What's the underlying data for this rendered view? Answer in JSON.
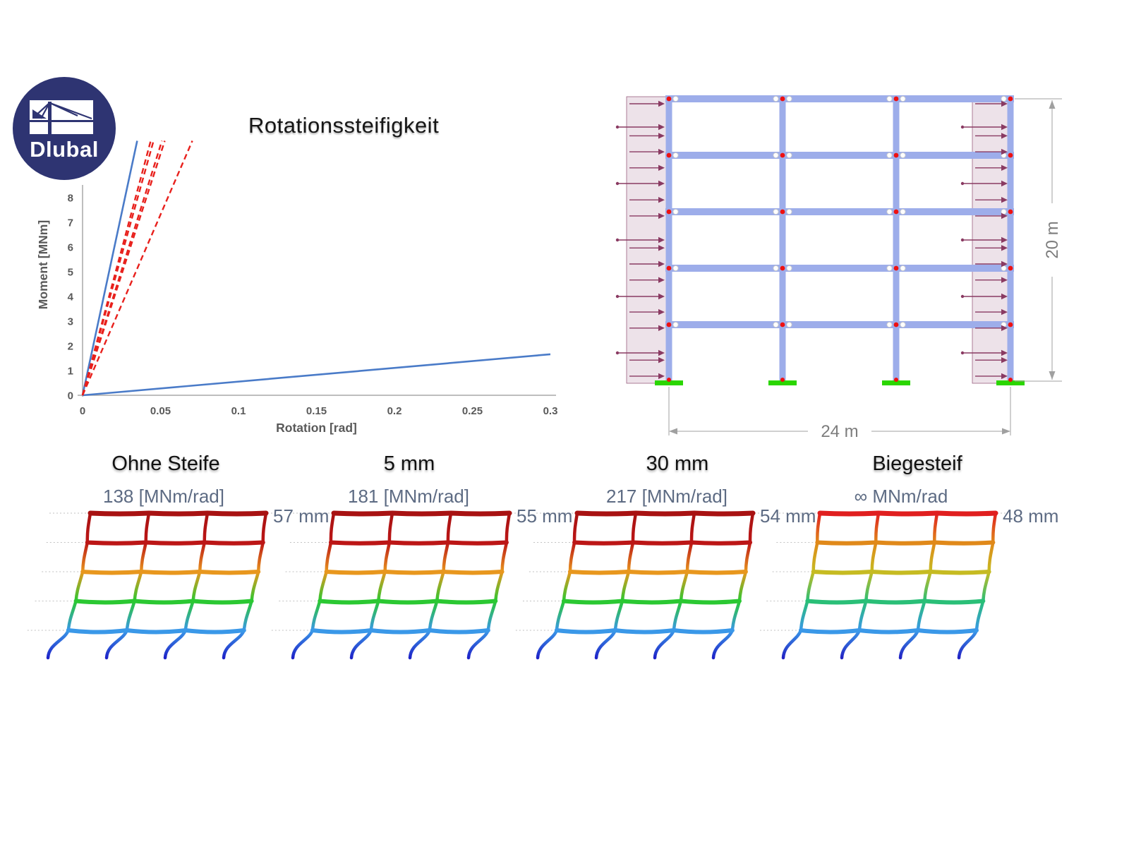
{
  "logo": {
    "brand": "Dlubal",
    "circle_color": "#2e3472",
    "mark_color": "#2e3472"
  },
  "chart": {
    "title": "Rotationssteifigkeit"
  },
  "chart_data": {
    "type": "line",
    "title": "Rotationssteifigkeit",
    "xlabel": "Rotation [rad]",
    "ylabel": "Moment [MNm]",
    "xlim": [
      0,
      0.3
    ],
    "ylim": [
      0,
      8
    ],
    "grid": false,
    "legend": "none",
    "xticks": [
      "0",
      "0.05",
      "0.1",
      "0.15",
      "0.2",
      "0.25",
      "0.3"
    ],
    "xtick_values": [
      0,
      0.05,
      0.1,
      0.15,
      0.2,
      0.25,
      0.3
    ],
    "yticks": [
      0,
      1,
      2,
      3,
      4,
      5,
      6,
      7,
      8
    ],
    "series": [
      {
        "name": "starre Anbindung (blau steil)",
        "style": "solid",
        "color": "#4a7bc8",
        "width": 2.6,
        "points": [
          [
            0,
            0
          ],
          [
            0.035,
            10.3
          ]
        ]
      },
      {
        "name": "gelenkige Anbindung (blau flach)",
        "style": "solid",
        "color": "#4a7bc8",
        "width": 2.6,
        "points": [
          [
            0,
            0
          ],
          [
            0.3,
            1.66
          ]
        ]
      },
      {
        "name": "Rotationssteifigkeit rot 1",
        "style": "dashed",
        "color": "#e8201c",
        "width": 2.4,
        "points": [
          [
            0,
            0
          ],
          [
            0.0437,
            10.3
          ]
        ]
      },
      {
        "name": "Rotationssteifigkeit rot 2",
        "style": "dashed",
        "color": "#e8201c",
        "width": 2.4,
        "points": [
          [
            0,
            0
          ],
          [
            0.0455,
            10.3
          ]
        ]
      },
      {
        "name": "Rotationssteifigkeit rot 3",
        "style": "dashed",
        "color": "#e8201c",
        "width": 2.4,
        "points": [
          [
            0,
            0
          ],
          [
            0.0509,
            10.3
          ]
        ]
      },
      {
        "name": "Rotationssteifigkeit rot 4",
        "style": "dashed",
        "color": "#e8201c",
        "width": 2.4,
        "points": [
          [
            0,
            0
          ],
          [
            0.0527,
            10.3
          ]
        ]
      },
      {
        "name": "Rotationssteifigkeit rot 5",
        "style": "dashed",
        "color": "#e8201c",
        "width": 2.4,
        "points": [
          [
            0,
            0
          ],
          [
            0.0704,
            10.3
          ]
        ]
      }
    ]
  },
  "frame_diagram": {
    "width_label": "24 m",
    "height_label": "20 m",
    "bays": 3,
    "stories": 5,
    "member_color": "#9dadea",
    "joint_color": "#ee1111",
    "hinge_color": "#ffffff",
    "load_color": "#8a3a62",
    "load_band_fill": "#c9a8bd",
    "support_color": "#2bd600",
    "dim_color": "#a0a0a0"
  },
  "cases": [
    {
      "title": "Ohne Steife",
      "stiffness": "138 [MNm/rad]",
      "displacement": "57 mm",
      "stub_color": "#1e22c8",
      "beam_colors": [
        "#3a98e8",
        "#2bc832",
        "#e8971e",
        "#bc1616",
        "#a81212"
      ]
    },
    {
      "title": "5 mm",
      "stiffness": "181 [MNm/rad]",
      "displacement": "55 mm",
      "stub_color": "#1e22c8",
      "beam_colors": [
        "#3a98e8",
        "#2bc832",
        "#e8971e",
        "#bc1616",
        "#a81212"
      ]
    },
    {
      "title": "30 mm",
      "stiffness": "217 [MNm/rad]",
      "displacement": "54 mm",
      "stub_color": "#1e22c8",
      "beam_colors": [
        "#3a98e8",
        "#2bc832",
        "#e8971e",
        "#bc1616",
        "#a81212"
      ]
    },
    {
      "title": "Biegesteif",
      "stiffness": "∞ MNm/rad",
      "displacement": "48 mm",
      "stub_color": "#2222c4",
      "beam_colors": [
        "#3a98e8",
        "#2abf77",
        "#c6bb22",
        "#e0891a",
        "#e01f1f"
      ]
    }
  ]
}
